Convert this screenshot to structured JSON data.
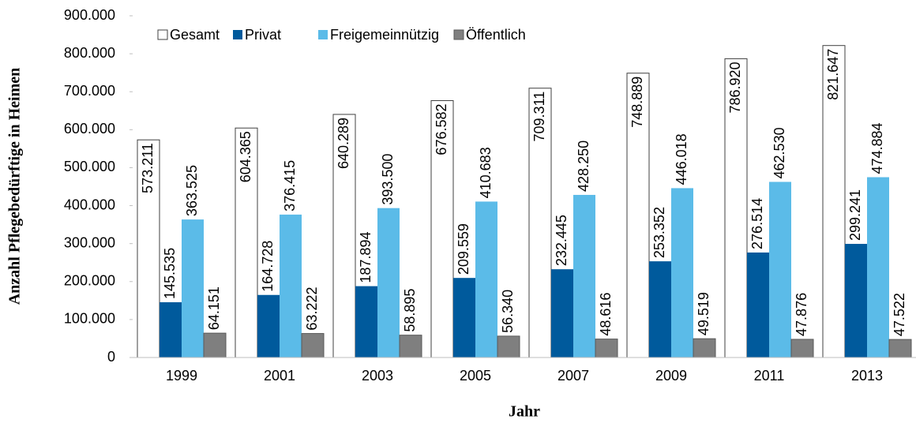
{
  "chart_data": {
    "type": "bar",
    "x_label": "Jahr",
    "y_label": "Anzahl Pflegebedürftige in Heimen",
    "categories": [
      "1999",
      "2001",
      "2003",
      "2005",
      "2007",
      "2009",
      "2011",
      "2013"
    ],
    "series": [
      {
        "name": "Gesamt",
        "color": "#ffffff",
        "values": [
          573211,
          604365,
          640289,
          676582,
          709311,
          748889,
          786920,
          821647
        ],
        "value_labels": [
          "573.211",
          "604.365",
          "640.289",
          "676.582",
          "709.311",
          "748.889",
          "786.920",
          "821.647"
        ]
      },
      {
        "name": "Privat",
        "color": "#005a9c",
        "values": [
          145535,
          164728,
          187894,
          209559,
          232445,
          253352,
          276514,
          299241
        ],
        "value_labels": [
          "145.535",
          "164.728",
          "187.894",
          "209.559",
          "232.445",
          "253.352",
          "276.514",
          "299.241"
        ]
      },
      {
        "name": "Freigemeinnützig",
        "color": "#5bbbe8",
        "values": [
          363525,
          376415,
          393500,
          410683,
          428250,
          446018,
          462530,
          474884
        ],
        "value_labels": [
          "363.525",
          "376.415",
          "393.500",
          "410.683",
          "428.250",
          "446.018",
          "462.530",
          "474.884"
        ]
      },
      {
        "name": "Öffentlich",
        "color": "#7f7f7f",
        "values": [
          64151,
          63222,
          58895,
          56340,
          48616,
          49519,
          47876,
          47522
        ],
        "value_labels": [
          "64.151",
          "63.222",
          "58.895",
          "56.340",
          "48.616",
          "49.519",
          "47.876",
          "47.522"
        ]
      }
    ],
    "ylim": [
      0,
      900000
    ],
    "yticks": [
      0,
      {
        "value": 100000,
        "label": "100.000"
      },
      {
        "value": 200000,
        "label": "200.000"
      },
      {
        "value": 300000,
        "label": "300.000"
      },
      {
        "value": 400000,
        "label": "400.000"
      },
      {
        "value": 500000,
        "label": "500.000"
      },
      {
        "value": 600000,
        "label": "600.000"
      },
      {
        "value": 700000,
        "label": "700.000"
      },
      {
        "value": 800000,
        "label": "800.000"
      },
      {
        "value": 900000,
        "label": "900.000"
      }
    ],
    "legend": "top-left"
  }
}
